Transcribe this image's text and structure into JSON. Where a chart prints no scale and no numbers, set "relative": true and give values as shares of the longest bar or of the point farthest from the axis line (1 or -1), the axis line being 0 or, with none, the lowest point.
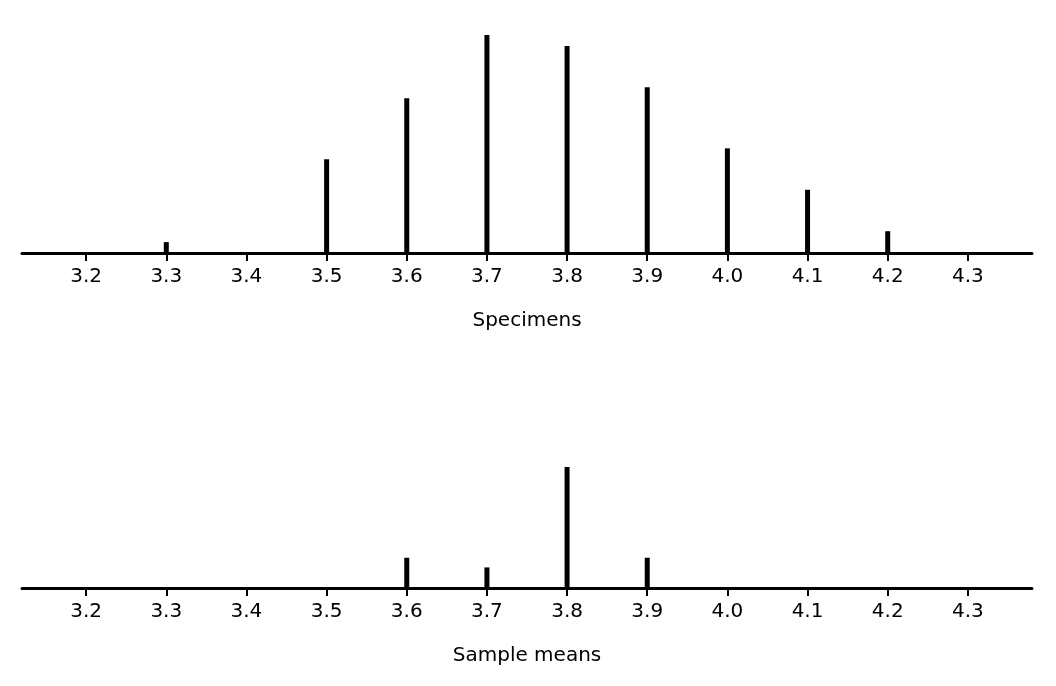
{
  "chart_data": [
    {
      "type": "bar",
      "relative": true,
      "xlabel": "Specimens",
      "x": [
        3.3,
        3.5,
        3.6,
        3.7,
        3.8,
        3.9,
        4.0,
        4.1,
        4.2
      ],
      "series": [
        {
          "color": "#000000",
          "values": [
            0.05,
            0.43,
            0.71,
            1,
            0.95,
            0.76,
            0.48,
            0.29,
            0.1
          ]
        }
      ],
      "xlim": [
        3.12,
        4.38
      ],
      "xticks": [
        3.2,
        3.3,
        3.4,
        3.5,
        3.6,
        3.7,
        3.8,
        3.9,
        {
          "value": 4,
          "label": "4.0"
        },
        4.1,
        4.2,
        4.3
      ]
    },
    {
      "type": "bar",
      "relative": true,
      "xlabel": "Sample means",
      "x": [
        3.6,
        3.7,
        3.8,
        3.9
      ],
      "series": [
        {
          "color": "#000000",
          "values": [
            0.25,
            0.17,
            1,
            0.25
          ]
        }
      ],
      "xlim": [
        3.12,
        4.38
      ],
      "xticks": [
        3.2,
        3.3,
        3.4,
        3.5,
        3.6,
        3.7,
        3.8,
        3.9,
        {
          "value": 4,
          "label": "4.0"
        },
        4.1,
        4.2,
        4.3
      ]
    }
  ]
}
